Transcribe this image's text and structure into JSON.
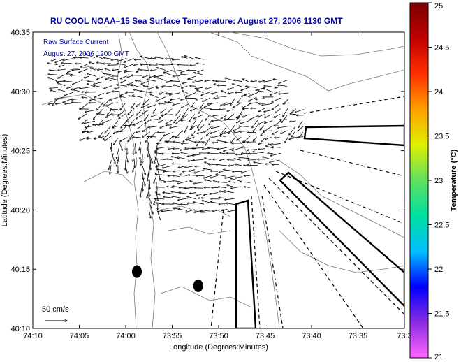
{
  "chart_data": {
    "type": "scatter",
    "title": "RU COOL  NOAA–15  Sea Surface Temperature:  August 27, 2006 1130 GMT",
    "subtitle_lines": [
      "Raw Surface Current",
      "August 27, 2006 1200 GMT"
    ],
    "xlabel": "Longitude (Degrees:Minutes)",
    "ylabel": "Latitude (Degrees:Minutes)",
    "x_ticks": [
      "74:10",
      "74:05",
      "74:00",
      "73:55",
      "73:50",
      "73:45",
      "73:40",
      "73:35",
      "73:3"
    ],
    "y_ticks": [
      "40:35",
      "40:30",
      "40:25",
      "40:20",
      "40:15",
      "40:10"
    ],
    "xlim": [
      -74.1667,
      -73.5
    ],
    "ylim": [
      40.1667,
      40.5833
    ],
    "scale_label": "50 cm/s",
    "grid": false,
    "colorbar": {
      "label": "Temperature (°C)",
      "ticks": [
        "25",
        "24.5",
        "24",
        "23.5",
        "23",
        "22.5",
        "22",
        "21.5",
        "21"
      ],
      "range": [
        21,
        25
      ],
      "colors": [
        "#ff66ff",
        "#8a2be2",
        "#0000ff",
        "#00c0ff",
        "#00e0a0",
        "#60e060",
        "#e0f000",
        "#ffa000",
        "#ff3000",
        "#c00000",
        "#7a0000"
      ]
    },
    "markers": [
      {
        "name": "buoy-marker-west",
        "lon": -73.98,
        "lat": 40.2467
      },
      {
        "name": "buoy-marker-east",
        "lon": -73.87,
        "lat": 40.2267
      }
    ]
  }
}
